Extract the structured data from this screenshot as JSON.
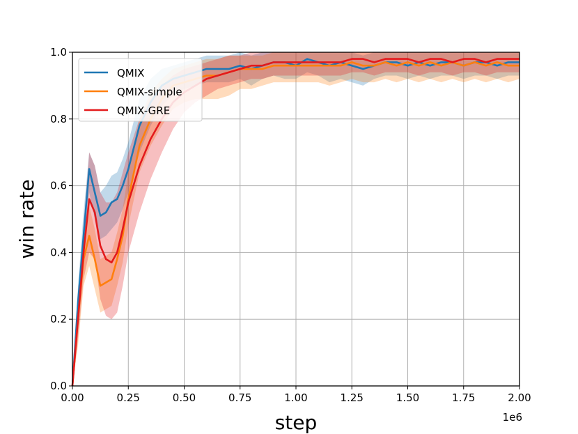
{
  "chart_data": {
    "type": "line",
    "title": "",
    "xlabel": "step",
    "ylabel": "win rate",
    "x_offset_label": "1e6",
    "xlim": [
      0,
      2.0
    ],
    "ylim": [
      0,
      1.0
    ],
    "grid": true,
    "legend_position": "upper-left",
    "x_ticks": [
      0.0,
      0.25,
      0.5,
      0.75,
      1.0,
      1.25,
      1.5,
      1.75,
      2.0
    ],
    "x_tick_labels": [
      "0.00",
      "0.25",
      "0.50",
      "0.75",
      "1.00",
      "1.25",
      "1.50",
      "1.75",
      "2.00"
    ],
    "y_ticks": [
      0.0,
      0.2,
      0.4,
      0.6,
      0.8,
      1.0
    ],
    "y_tick_labels": [
      "0.0",
      "0.2",
      "0.4",
      "0.6",
      "0.8",
      "1.0"
    ],
    "x": [
      0.0,
      0.025,
      0.05,
      0.075,
      0.1,
      0.125,
      0.15,
      0.175,
      0.2,
      0.225,
      0.25,
      0.3,
      0.35,
      0.4,
      0.45,
      0.5,
      0.55,
      0.6,
      0.65,
      0.7,
      0.75,
      0.8,
      0.85,
      0.9,
      0.95,
      1.0,
      1.05,
      1.1,
      1.15,
      1.2,
      1.25,
      1.3,
      1.35,
      1.4,
      1.45,
      1.5,
      1.55,
      1.6,
      1.65,
      1.7,
      1.75,
      1.8,
      1.85,
      1.9,
      1.95,
      2.0
    ],
    "series": [
      {
        "name": "QMIX",
        "color": "#1f77b4",
        "values": [
          0.0,
          0.25,
          0.45,
          0.65,
          0.58,
          0.51,
          0.52,
          0.55,
          0.56,
          0.6,
          0.65,
          0.78,
          0.85,
          0.9,
          0.92,
          0.93,
          0.94,
          0.95,
          0.95,
          0.95,
          0.96,
          0.95,
          0.96,
          0.97,
          0.97,
          0.96,
          0.98,
          0.97,
          0.96,
          0.97,
          0.96,
          0.95,
          0.96,
          0.97,
          0.97,
          0.96,
          0.97,
          0.96,
          0.97,
          0.97,
          0.96,
          0.97,
          0.97,
          0.96,
          0.97,
          0.97
        ],
        "lower": [
          0.0,
          0.2,
          0.38,
          0.58,
          0.5,
          0.44,
          0.45,
          0.47,
          0.49,
          0.53,
          0.58,
          0.7,
          0.78,
          0.84,
          0.87,
          0.89,
          0.9,
          0.91,
          0.91,
          0.91,
          0.92,
          0.9,
          0.92,
          0.93,
          0.92,
          0.92,
          0.94,
          0.93,
          0.91,
          0.92,
          0.91,
          0.9,
          0.92,
          0.93,
          0.93,
          0.92,
          0.93,
          0.92,
          0.93,
          0.93,
          0.92,
          0.93,
          0.93,
          0.92,
          0.93,
          0.93
        ],
        "upper": [
          0.0,
          0.3,
          0.52,
          0.7,
          0.66,
          0.58,
          0.6,
          0.63,
          0.64,
          0.68,
          0.73,
          0.86,
          0.92,
          0.95,
          0.96,
          0.97,
          0.98,
          0.99,
          0.99,
          0.99,
          1.0,
          0.99,
          1.0,
          1.0,
          1.0,
          1.0,
          1.0,
          1.0,
          1.0,
          1.0,
          1.0,
          0.99,
          1.0,
          1.0,
          1.0,
          1.0,
          1.0,
          1.0,
          1.0,
          1.0,
          1.0,
          1.0,
          1.0,
          1.0,
          1.0,
          1.0
        ]
      },
      {
        "name": "QMIX-simple",
        "color": "#ff7f0e",
        "values": [
          0.0,
          0.2,
          0.38,
          0.45,
          0.38,
          0.3,
          0.31,
          0.32,
          0.38,
          0.45,
          0.56,
          0.72,
          0.8,
          0.86,
          0.9,
          0.91,
          0.92,
          0.93,
          0.93,
          0.94,
          0.95,
          0.95,
          0.95,
          0.96,
          0.96,
          0.96,
          0.96,
          0.96,
          0.96,
          0.96,
          0.97,
          0.96,
          0.96,
          0.97,
          0.96,
          0.97,
          0.96,
          0.97,
          0.96,
          0.97,
          0.96,
          0.97,
          0.96,
          0.97,
          0.96,
          0.96
        ],
        "lower": [
          0.0,
          0.12,
          0.3,
          0.36,
          0.29,
          0.22,
          0.23,
          0.24,
          0.3,
          0.37,
          0.48,
          0.64,
          0.72,
          0.78,
          0.83,
          0.85,
          0.86,
          0.86,
          0.86,
          0.87,
          0.89,
          0.89,
          0.9,
          0.91,
          0.91,
          0.91,
          0.91,
          0.91,
          0.9,
          0.91,
          0.92,
          0.91,
          0.91,
          0.92,
          0.91,
          0.92,
          0.91,
          0.92,
          0.91,
          0.92,
          0.91,
          0.92,
          0.91,
          0.92,
          0.91,
          0.92
        ],
        "upper": [
          0.0,
          0.28,
          0.46,
          0.54,
          0.47,
          0.38,
          0.39,
          0.4,
          0.46,
          0.53,
          0.64,
          0.8,
          0.88,
          0.92,
          0.95,
          0.96,
          0.97,
          0.98,
          0.98,
          0.99,
          0.99,
          0.99,
          0.99,
          1.0,
          1.0,
          1.0,
          1.0,
          1.0,
          1.0,
          1.0,
          1.0,
          1.0,
          1.0,
          1.0,
          1.0,
          1.0,
          1.0,
          1.0,
          1.0,
          1.0,
          1.0,
          1.0,
          1.0,
          1.0,
          1.0,
          1.0
        ]
      },
      {
        "name": "QMIX-GRE",
        "color": "#e31a1c",
        "values": [
          0.0,
          0.2,
          0.4,
          0.56,
          0.52,
          0.42,
          0.38,
          0.37,
          0.4,
          0.47,
          0.55,
          0.66,
          0.74,
          0.8,
          0.85,
          0.88,
          0.9,
          0.92,
          0.93,
          0.94,
          0.95,
          0.96,
          0.96,
          0.97,
          0.97,
          0.97,
          0.97,
          0.97,
          0.97,
          0.97,
          0.98,
          0.98,
          0.97,
          0.98,
          0.98,
          0.98,
          0.97,
          0.98,
          0.98,
          0.97,
          0.98,
          0.98,
          0.97,
          0.98,
          0.98,
          0.98
        ],
        "lower": [
          0.0,
          0.14,
          0.32,
          0.4,
          0.38,
          0.26,
          0.21,
          0.2,
          0.22,
          0.3,
          0.4,
          0.52,
          0.62,
          0.7,
          0.77,
          0.82,
          0.85,
          0.87,
          0.89,
          0.9,
          0.91,
          0.92,
          0.92,
          0.93,
          0.93,
          0.93,
          0.93,
          0.93,
          0.93,
          0.93,
          0.94,
          0.94,
          0.93,
          0.94,
          0.94,
          0.94,
          0.93,
          0.94,
          0.94,
          0.93,
          0.94,
          0.94,
          0.93,
          0.94,
          0.94,
          0.94
        ],
        "upper": [
          0.0,
          0.26,
          0.48,
          0.7,
          0.66,
          0.58,
          0.55,
          0.55,
          0.58,
          0.64,
          0.7,
          0.8,
          0.86,
          0.9,
          0.93,
          0.95,
          0.96,
          0.97,
          0.98,
          0.99,
          0.99,
          1.0,
          1.0,
          1.0,
          1.0,
          1.0,
          1.0,
          1.0,
          1.0,
          1.0,
          1.0,
          1.0,
          1.0,
          1.0,
          1.0,
          1.0,
          1.0,
          1.0,
          1.0,
          1.0,
          1.0,
          1.0,
          1.0,
          1.0,
          1.0,
          1.0
        ]
      }
    ]
  }
}
